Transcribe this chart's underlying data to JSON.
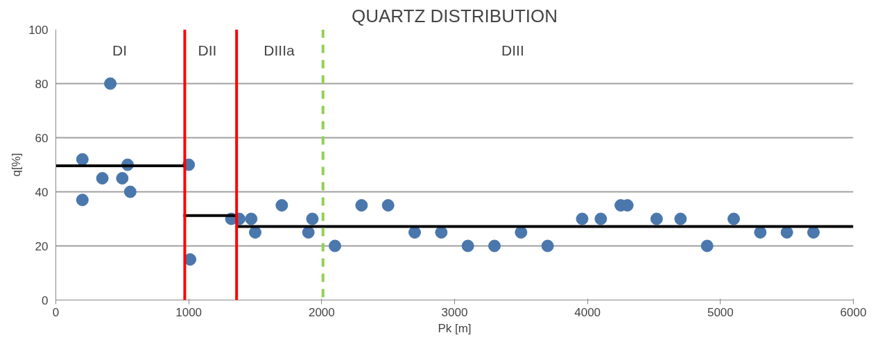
{
  "chart_data": {
    "type": "scatter",
    "title": "QUARTZ DISTRIBUTION",
    "xlabel": "Pk [m]",
    "ylabel": "q[%]",
    "xlim": [
      0,
      6000
    ],
    "xticks": [
      0,
      1000,
      2000,
      3000,
      4000,
      5000,
      6000
    ],
    "ylim": [
      0,
      100
    ],
    "yticks": [
      0,
      20,
      40,
      60,
      80,
      100
    ],
    "grid": "y",
    "marker": "circle",
    "series": [
      {
        "color": "#4a77ac",
        "x": [
          200,
          200,
          350,
          410,
          500,
          540,
          560,
          1000,
          1010,
          1320,
          1380,
          1470,
          1500,
          1700,
          1900,
          1930,
          2100,
          2300,
          2500,
          2700,
          2900,
          3100,
          3300,
          3500,
          3700,
          3960,
          4100,
          4250,
          4300,
          4520,
          4700,
          4900,
          5100,
          5300,
          5500,
          5700
        ],
        "values": [
          52,
          37,
          45,
          80,
          45,
          50,
          40,
          50,
          15,
          30,
          30,
          30,
          25,
          35,
          25,
          30,
          20,
          35,
          35,
          25,
          25,
          20,
          20,
          25,
          20,
          30,
          30,
          35,
          35,
          30,
          30,
          20,
          30,
          25,
          25,
          25
        ]
      },
      {
        "type": "line",
        "marker": "none",
        "color": "#000000",
        "x": [
          0,
          970
        ],
        "values": [
          49.6,
          49.6
        ]
      },
      {
        "type": "line",
        "marker": "none",
        "color": "#000000",
        "x": [
          960,
          1360
        ],
        "values": [
          31.2,
          31.2
        ]
      },
      {
        "type": "line",
        "marker": "none",
        "color": "#000000",
        "x": [
          1360,
          6000
        ],
        "values": [
          27.2,
          27.2
        ]
      }
    ],
    "ref_lines": [
      {
        "axis": "x",
        "value": 970,
        "color": "#ff0000",
        "line_style": "solid"
      },
      {
        "axis": "x",
        "value": 1360,
        "color": "#ff0000",
        "line_style": "solid"
      },
      {
        "axis": "x",
        "value": 2010,
        "color": "#92d050",
        "line_style": "dashed"
      }
    ],
    "annotations": [
      "DI",
      "DII",
      "DIIIa",
      "DIII"
    ]
  }
}
